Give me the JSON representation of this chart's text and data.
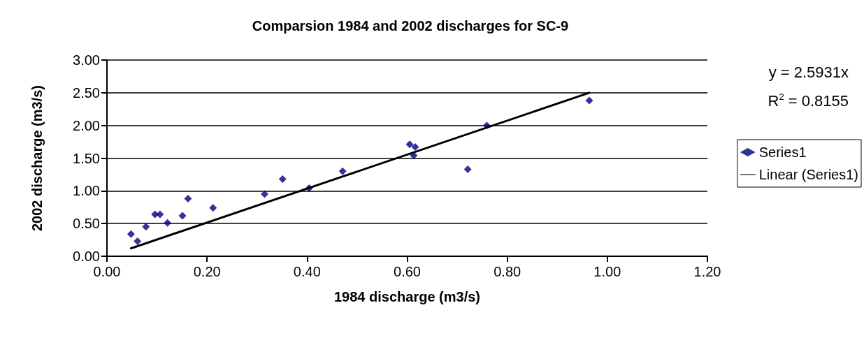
{
  "chart_data": {
    "type": "scatter",
    "title": "Comparsion 1984 and 2002 discharges for SC-9",
    "xlabel": "1984 discharge (m3/s)",
    "ylabel": "2002 discharge (m3/s)",
    "series": [
      {
        "name": "Series1",
        "color": "#000080",
        "marker": "diamond",
        "x": [
          0.048,
          0.061,
          0.078,
          0.096,
          0.106,
          0.121,
          0.151,
          0.162,
          0.212,
          0.315,
          0.351,
          0.404,
          0.471,
          0.605,
          0.616,
          0.613,
          0.721,
          0.759,
          0.964
        ],
        "values": [
          0.34,
          0.23,
          0.45,
          0.64,
          0.64,
          0.51,
          0.62,
          0.88,
          0.74,
          0.95,
          1.18,
          1.04,
          1.3,
          1.71,
          1.67,
          1.54,
          1.33,
          2.0,
          2.38
        ]
      },
      {
        "name": "Linear (Series1)",
        "type": "line",
        "color": "#000000",
        "marker": "none",
        "x": [
          0.048,
          0.964
        ],
        "values": [
          0.12,
          2.5
        ]
      }
    ],
    "xlim": [
      0,
      1.2
    ],
    "xticks": [
      {
        "value": 0,
        "label": "0.00"
      },
      {
        "value": 0.2,
        "label": "0.20"
      },
      {
        "value": 0.4,
        "label": "0.40"
      },
      {
        "value": 0.6,
        "label": "0.60"
      },
      {
        "value": 0.8,
        "label": "0.80"
      },
      {
        "value": 1.0,
        "label": "1.00"
      },
      {
        "value": 1.2,
        "label": "1.20"
      }
    ],
    "ylim": [
      0,
      3
    ],
    "yticks": [
      {
        "value": 0,
        "label": "0.00"
      },
      {
        "value": 0.5,
        "label": "0.50"
      },
      {
        "value": 1.0,
        "label": "1.00"
      },
      {
        "value": 1.5,
        "label": "1.50"
      },
      {
        "value": 2.0,
        "label": "2.00"
      },
      {
        "value": 2.5,
        "label": "2.50"
      },
      {
        "value": 3.0,
        "label": "3.00"
      }
    ],
    "grid": "y",
    "legend": "right",
    "annotations": [
      "y = 2.5931x",
      "R$^{2}$ = 0.8155"
    ]
  }
}
